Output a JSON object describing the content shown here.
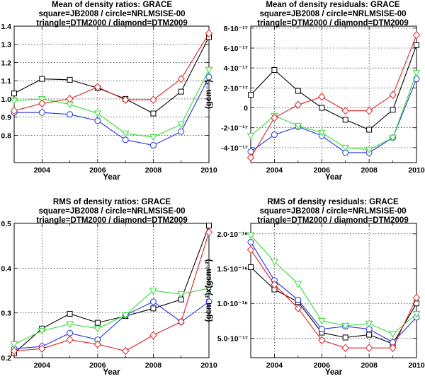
{
  "chart_data": [
    {
      "id": "p1",
      "type": "line",
      "title_lines": [
        "Mean of density ratios: GRACE",
        "square=JB2008 / circle=NRLMSISE-00",
        "triangle=DTM2000 / diamond=DTM2009"
      ],
      "xlabel": "Year",
      "ylabel": "",
      "xlim": [
        2003,
        2010
      ],
      "ylim": [
        0.65,
        1.4
      ],
      "x_ticks": [
        {
          "v": 2004,
          "label": "2004"
        },
        {
          "v": 2006,
          "label": "2006"
        },
        {
          "v": 2008,
          "label": "2008"
        },
        {
          "v": 2010,
          "label": "2010"
        }
      ],
      "y_ticks": [
        {
          "v": 0.8,
          "label": "0.8"
        },
        {
          "v": 0.9,
          "label": "0.9"
        },
        {
          "v": 1.0,
          "label": "1.0"
        },
        {
          "v": 1.1,
          "label": "1.1"
        },
        {
          "v": 1.2,
          "label": "1.2"
        },
        {
          "v": 1.3,
          "label": "1.3"
        },
        {
          "v": 1.4,
          "label": "1.4"
        }
      ],
      "x": [
        2003,
        2004,
        2005,
        2006,
        2007,
        2008,
        2009,
        2010
      ],
      "series": [
        {
          "name": "JB2008",
          "marker": "square",
          "color": "#000000",
          "values": [
            1.03,
            1.11,
            1.105,
            1.06,
            1.0,
            0.92,
            1.04,
            1.34
          ]
        },
        {
          "name": "NRLMSISE-00",
          "marker": "circle",
          "color": "#2233dd",
          "values": [
            0.925,
            0.925,
            0.915,
            0.88,
            0.775,
            0.745,
            0.82,
            1.12
          ]
        },
        {
          "name": "DTM2000",
          "marker": "triangle",
          "color": "#33dd33",
          "values": [
            0.99,
            1.0,
            0.97,
            0.92,
            0.81,
            0.79,
            0.86,
            1.16
          ]
        },
        {
          "name": "DTM2009",
          "marker": "diamond",
          "color": "#dd2222",
          "values": [
            0.935,
            0.975,
            1.0,
            1.065,
            0.995,
            0.995,
            1.11,
            1.36
          ]
        }
      ]
    },
    {
      "id": "p2",
      "type": "line",
      "title_lines": [
        "Mean of density residuals: GRACE",
        "square=JB2008 / circle=NRLMSISE-00",
        "triangle=DTM2000 / diamond=DTM2009"
      ],
      "xlabel": "Year",
      "ylabel": "(gcm⁻³)",
      "xlim": [
        2003,
        2010
      ],
      "ylim": [
        -5.5e-17,
        8.2e-17
      ],
      "x_ticks": [
        {
          "v": 2004,
          "label": "2004"
        },
        {
          "v": 2006,
          "label": "2006"
        },
        {
          "v": 2008,
          "label": "2008"
        },
        {
          "v": 2010,
          "label": "2010"
        }
      ],
      "y_ticks": [
        {
          "v": -4e-17,
          "label": "-4·10⁻¹⁷"
        },
        {
          "v": -2e-17,
          "label": "-2·10⁻¹⁷"
        },
        {
          "v": 0,
          "label": "0"
        },
        {
          "v": 2e-17,
          "label": "2·10⁻¹⁷"
        },
        {
          "v": 4e-17,
          "label": "4·10⁻¹⁷"
        },
        {
          "v": 6e-17,
          "label": "6·10⁻¹⁷"
        },
        {
          "v": 8e-17,
          "label": "8·10⁻¹⁷"
        }
      ],
      "x": [
        2003,
        2004,
        2005,
        2006,
        2007,
        2008,
        2009,
        2010
      ],
      "series": [
        {
          "name": "JB2008",
          "marker": "square",
          "color": "#000000",
          "values": [
            1.3e-17,
            3.8e-17,
            1.7e-17,
            0.0,
            -1.2e-17,
            -2.2e-17,
            -2e-18,
            6.3e-17
          ]
        },
        {
          "name": "NRLMSISE-00",
          "marker": "circle",
          "color": "#2233dd",
          "values": [
            -4.4e-17,
            -2.7e-17,
            -1.9e-17,
            -2.8e-17,
            -4.5e-17,
            -4.5e-17,
            -3e-17,
            2.9e-17
          ]
        },
        {
          "name": "DTM2000",
          "marker": "triangle",
          "color": "#33dd33",
          "values": [
            -2.8e-17,
            -8e-18,
            -1.8e-17,
            -2.5e-17,
            -4e-17,
            -4.2e-17,
            -3e-17,
            3.5e-17
          ]
        },
        {
          "name": "DTM2009",
          "marker": "diamond",
          "color": "#dd2222",
          "values": [
            -5e-17,
            -1e-17,
            3e-18,
            1.1e-17,
            -3e-18,
            -3e-18,
            1.3e-17,
            7.3e-17
          ]
        }
      ]
    },
    {
      "id": "p3",
      "type": "line",
      "title_lines": [
        "RMS of density ratios: GRACE",
        "square=JB2008 / circle=NRLMSISE-00",
        "triangle=DTM2000 / diamond=DTM2009"
      ],
      "xlabel": "Year",
      "ylabel": "",
      "xlim": [
        2003,
        2010
      ],
      "ylim": [
        0.2,
        0.5
      ],
      "x_ticks": [
        {
          "v": 2004,
          "label": "2004"
        },
        {
          "v": 2006,
          "label": "2006"
        },
        {
          "v": 2008,
          "label": "2008"
        },
        {
          "v": 2010,
          "label": "2010"
        }
      ],
      "y_ticks": [
        {
          "v": 0.2,
          "label": "0.2"
        },
        {
          "v": 0.3,
          "label": "0.3"
        },
        {
          "v": 0.4,
          "label": "0.4"
        },
        {
          "v": 0.5,
          "label": "0.5"
        }
      ],
      "x": [
        2003,
        2004,
        2005,
        2006,
        2007,
        2008,
        2009,
        2010
      ],
      "series": [
        {
          "name": "JB2008",
          "marker": "square",
          "color": "#000000",
          "values": [
            0.21,
            0.265,
            0.298,
            0.278,
            0.293,
            0.31,
            0.33,
            0.495
          ]
        },
        {
          "name": "NRLMSISE-00",
          "marker": "circle",
          "color": "#2233dd",
          "values": [
            0.22,
            0.225,
            0.255,
            0.24,
            0.295,
            0.325,
            0.28,
            0.325
          ]
        },
        {
          "name": "DTM2000",
          "marker": "triangle",
          "color": "#33dd33",
          "values": [
            0.23,
            0.26,
            0.275,
            0.265,
            0.295,
            0.35,
            0.342,
            0.355
          ]
        },
        {
          "name": "DTM2009",
          "marker": "diamond",
          "color": "#dd2222",
          "values": [
            0.215,
            0.22,
            0.24,
            0.23,
            0.215,
            0.25,
            0.28,
            0.48
          ]
        }
      ]
    },
    {
      "id": "p4",
      "type": "line",
      "title_lines": [
        "RMS of density residuals: GRACE",
        "square=JB2008 / circle=NRLMSISE-00",
        "triangle=DTM2000 / diamond=DTM2009"
      ],
      "xlabel": "Year",
      "ylabel": "(gcm⁻³)x(gcm⁻³)",
      "xlim": [
        2003,
        2010
      ],
      "ylim": [
        2.2e-17,
        2.15e-16
      ],
      "x_ticks": [
        {
          "v": 2004,
          "label": "2004"
        },
        {
          "v": 2006,
          "label": "2006"
        },
        {
          "v": 2008,
          "label": "2008"
        },
        {
          "v": 2010,
          "label": "2010"
        }
      ],
      "y_ticks": [
        {
          "v": 5e-17,
          "label": "5.0·10⁻¹⁷"
        },
        {
          "v": 1e-16,
          "label": "1.0·10⁻¹⁶"
        },
        {
          "v": 1.5e-16,
          "label": "1.5·10⁻¹⁶"
        },
        {
          "v": 2e-16,
          "label": "2.0·10⁻¹⁶"
        }
      ],
      "x": [
        2003,
        2004,
        2005,
        2006,
        2007,
        2008,
        2009,
        2010
      ],
      "series": [
        {
          "name": "JB2008",
          "marker": "square",
          "color": "#000000",
          "values": [
            1.52e-16,
            1.2e-16,
            1.02e-16,
            5.8e-17,
            5.1e-17,
            5.5e-17,
            4.2e-17,
            1e-16
          ]
        },
        {
          "name": "NRLMSISE-00",
          "marker": "circle",
          "color": "#2233dd",
          "values": [
            1.88e-16,
            1.33e-16,
            1.05e-16,
            6.3e-17,
            6.7e-17,
            6.3e-17,
            4.4e-17,
            8e-17
          ]
        },
        {
          "name": "DTM2000",
          "marker": "triangle",
          "color": "#33dd33",
          "values": [
            1.98e-16,
            1.6e-16,
            1.28e-16,
            7.5e-17,
            6.8e-17,
            7.1e-17,
            5.6e-17,
            8.5e-17
          ]
        },
        {
          "name": "DTM2009",
          "marker": "diamond",
          "color": "#dd2222",
          "values": [
            1.77e-16,
            1.27e-16,
            9.3e-17,
            4.7e-17,
            3.6e-17,
            3.6e-17,
            3.6e-17,
            1.08e-16
          ]
        }
      ]
    }
  ]
}
